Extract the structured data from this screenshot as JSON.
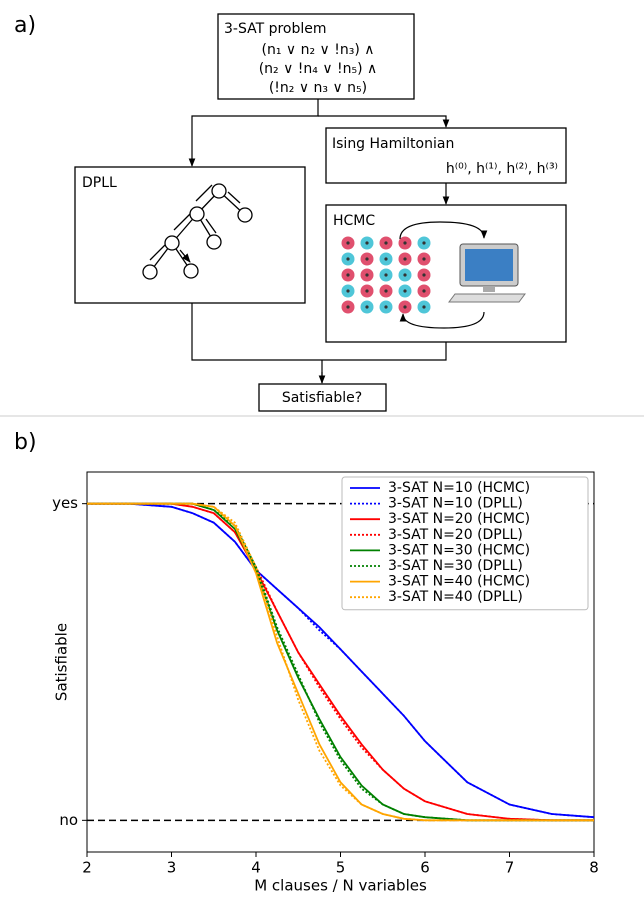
{
  "panel_a": {
    "label": "a)",
    "problem": {
      "title": "3-SAT problem",
      "lines": [
        "(n₁ ∨ n₂ ∨ !n₃) ∧",
        "(n₂ ∨ !n₄ ∨ !n₅) ∧",
        "(!n₂ ∨ n₃ ∨ n₅)"
      ]
    },
    "dpll": "DPLL",
    "ising": {
      "title": "Ising Hamiltonian",
      "terms": "h⁽⁰⁾, h⁽¹⁾, h⁽²⁾, h⁽³⁾"
    },
    "hcmc": "HCMC",
    "output": "Satisfiable?"
  },
  "panel_b_label": "b)",
  "chart_data": {
    "type": "line",
    "xlabel": "M clauses / N variables",
    "ylabel": "Satisfiable",
    "x": [
      2,
      2.5,
      3,
      3.25,
      3.5,
      3.75,
      4,
      4.25,
      4.5,
      4.75,
      5,
      5.25,
      5.5,
      5.75,
      6,
      6.5,
      7,
      7.5,
      8
    ],
    "xlim": [
      2,
      8
    ],
    "xticks": [
      2,
      3,
      4,
      5,
      6,
      7,
      8
    ],
    "ylim": [
      -0.1,
      1.1
    ],
    "yticks": [
      {
        "value": 0,
        "label": "no"
      },
      {
        "value": 1,
        "label": "yes"
      }
    ],
    "reference_lines": "dashed",
    "legend": "upper right",
    "series": [
      {
        "name": "3-SAT N=10 (HCMC)",
        "color": "#0000ff",
        "dash": "solid",
        "values": [
          1,
          1,
          0.99,
          0.97,
          0.94,
          0.88,
          0.79,
          0.73,
          0.67,
          0.61,
          0.54,
          0.47,
          0.4,
          0.33,
          0.25,
          0.12,
          0.05,
          0.02,
          0.01
        ]
      },
      {
        "name": "3-SAT N=10 (DPLL)",
        "color": "#0000ff",
        "dash": "dotted",
        "values": [
          1,
          1,
          0.99,
          0.97,
          0.94,
          0.88,
          0.79,
          0.73,
          0.67,
          0.6,
          0.54,
          0.47,
          0.4,
          0.33,
          0.25,
          0.12,
          0.05,
          0.02,
          0.01
        ]
      },
      {
        "name": "3-SAT N=20 (HCMC)",
        "color": "#ff0000",
        "dash": "solid",
        "values": [
          1,
          1,
          1,
          0.99,
          0.97,
          0.91,
          0.79,
          0.66,
          0.53,
          0.43,
          0.33,
          0.24,
          0.16,
          0.1,
          0.06,
          0.02,
          0.005,
          0,
          0
        ]
      },
      {
        "name": "3-SAT N=20 (DPLL)",
        "color": "#ff0000",
        "dash": "dotted",
        "values": [
          1,
          1,
          1,
          0.99,
          0.97,
          0.91,
          0.8,
          0.66,
          0.53,
          0.42,
          0.32,
          0.23,
          0.16,
          0.1,
          0.06,
          0.02,
          0.005,
          0,
          0
        ]
      },
      {
        "name": "3-SAT N=30 (HCMC)",
        "color": "#008000",
        "dash": "solid",
        "values": [
          1,
          1,
          1,
          1,
          0.98,
          0.92,
          0.79,
          0.6,
          0.45,
          0.32,
          0.2,
          0.11,
          0.05,
          0.02,
          0.01,
          0,
          0,
          0,
          0
        ]
      },
      {
        "name": "3-SAT N=30 (DPLL)",
        "color": "#008000",
        "dash": "dotted",
        "values": [
          1,
          1,
          1,
          1,
          0.98,
          0.93,
          0.8,
          0.61,
          0.46,
          0.31,
          0.19,
          0.1,
          0.05,
          0.02,
          0.01,
          0,
          0,
          0,
          0
        ]
      },
      {
        "name": "3-SAT N=40 (HCMC)",
        "color": "#ffa500",
        "dash": "solid",
        "values": [
          1,
          1,
          1,
          1,
          0.99,
          0.93,
          0.78,
          0.56,
          0.4,
          0.24,
          0.12,
          0.05,
          0.02,
          0.005,
          0,
          0,
          0,
          0,
          0
        ]
      },
      {
        "name": "3-SAT N=40 (DPLL)",
        "color": "#ffa500",
        "dash": "dotted",
        "values": [
          1,
          1,
          1,
          1,
          0.99,
          0.94,
          0.8,
          0.58,
          0.38,
          0.22,
          0.11,
          0.05,
          0.02,
          0.005,
          0,
          0,
          0,
          0,
          0
        ]
      }
    ]
  }
}
